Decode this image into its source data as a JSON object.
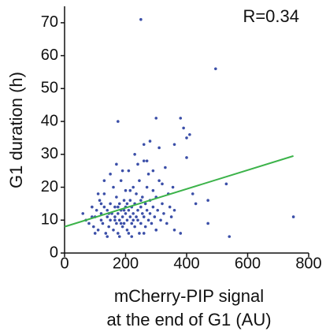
{
  "chart_data": {
    "type": "scatter",
    "annotation": "R=0.34",
    "ylabel": "G1 duration (h)",
    "xlabel_lines": [
      "mCherry-PIP signal",
      "at the end of G1 (AU)"
    ],
    "xlim": [
      0,
      800
    ],
    "ylim": [
      0,
      75
    ],
    "xticks": [
      0,
      200,
      400,
      600,
      800
    ],
    "yticks": [
      0,
      10,
      20,
      30,
      40,
      50,
      60,
      70
    ],
    "point_color": "#3b4fa8",
    "x": [
      60,
      70,
      80,
      90,
      95,
      100,
      105,
      110,
      115,
      120,
      120,
      125,
      130,
      130,
      135,
      140,
      140,
      145,
      150,
      150,
      155,
      160,
      160,
      165,
      165,
      170,
      170,
      175,
      175,
      180,
      180,
      185,
      185,
      190,
      190,
      195,
      195,
      200,
      200,
      200,
      205,
      205,
      210,
      210,
      215,
      215,
      220,
      220,
      225,
      225,
      230,
      230,
      235,
      235,
      240,
      240,
      245,
      245,
      250,
      250,
      255,
      255,
      260,
      260,
      265,
      265,
      270,
      270,
      275,
      275,
      280,
      280,
      285,
      290,
      290,
      295,
      300,
      300,
      305,
      310,
      315,
      320,
      325,
      330,
      335,
      340,
      345,
      350,
      355,
      360,
      150,
      130,
      110,
      100,
      90,
      140,
      180,
      220,
      170,
      190,
      230,
      280,
      240,
      210,
      260,
      195,
      165,
      205,
      145,
      185,
      225,
      175,
      250,
      120,
      215,
      290,
      320,
      270,
      250,
      495,
      750,
      540,
      530,
      470,
      470,
      380,
      300,
      390,
      175,
      410,
      400,
      260,
      310,
      360,
      400,
      430,
      420,
      300,
      360,
      380
    ],
    "y": [
      12,
      10,
      9,
      14,
      8,
      11,
      13,
      7,
      16,
      10,
      12,
      9,
      14,
      18,
      6,
      11,
      13,
      8,
      15,
      10,
      12,
      20,
      7,
      11,
      14,
      9,
      17,
      12,
      6,
      10,
      15,
      13,
      22,
      8,
      11,
      16,
      9,
      12,
      14,
      19,
      10,
      7,
      13,
      25,
      11,
      16,
      9,
      14,
      12,
      20,
      8,
      15,
      11,
      18,
      13,
      10,
      6,
      22,
      14,
      9,
      12,
      17,
      11,
      28,
      15,
      8,
      13,
      20,
      10,
      24,
      16,
      12,
      9,
      14,
      19,
      11,
      17,
      7,
      13,
      22,
      10,
      15,
      12,
      26,
      9,
      18,
      14,
      11,
      20,
      13,
      24,
      22,
      18,
      6,
      11,
      5,
      5,
      5,
      27,
      25,
      30,
      34,
      27,
      6,
      6,
      13,
      10,
      15,
      12,
      9,
      10,
      14,
      16,
      15,
      19,
      25,
      21,
      28,
      71,
      56,
      11,
      5,
      21,
      16,
      9,
      41,
      41,
      38,
      40,
      36,
      35,
      33,
      32,
      33,
      29,
      15,
      18,
      7,
      7,
      6
    ],
    "fit": {
      "color": "#3cb34a",
      "x": [
        0,
        750
      ],
      "y": [
        8,
        29.5
      ]
    }
  }
}
